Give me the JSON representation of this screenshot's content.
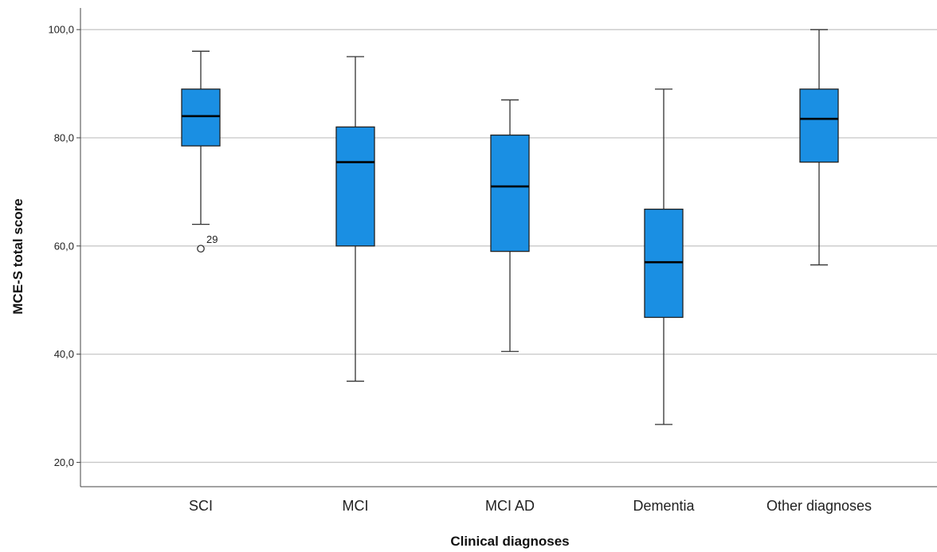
{
  "chart_data": {
    "type": "boxplot",
    "title": "",
    "xlabel": "Clinical diagnoses",
    "ylabel": "MCE-S total score",
    "ylim": [
      15.5,
      104
    ],
    "yticks": [
      20,
      40,
      60,
      80,
      100
    ],
    "ytick_labels": [
      "20,0",
      "40,0",
      "60,0",
      "80,0",
      "100,0"
    ],
    "grid": "horizontal",
    "box_color": "#1a8fe3",
    "categories": [
      "SCI",
      "MCI",
      "MCI AD",
      "Dementia",
      "Other diagnoses"
    ],
    "boxes": [
      {
        "category": "SCI",
        "min": 64,
        "q1": 78.5,
        "median": 84,
        "q3": 89,
        "max": 96
      },
      {
        "category": "MCI",
        "min": 35,
        "q1": 60,
        "median": 75.5,
        "q3": 82,
        "max": 95
      },
      {
        "category": "MCI AD",
        "min": 40.5,
        "q1": 59,
        "median": 71,
        "q3": 80.5,
        "max": 87
      },
      {
        "category": "Dementia",
        "min": 27,
        "q1": 46.8,
        "median": 57,
        "q3": 66.8,
        "max": 89
      },
      {
        "category": "Other diagnoses",
        "min": 56.5,
        "q1": 75.5,
        "median": 83.5,
        "q3": 89,
        "max": 100
      }
    ],
    "outliers": [
      {
        "category": "SCI",
        "value": 59.5,
        "label": "29"
      }
    ]
  }
}
